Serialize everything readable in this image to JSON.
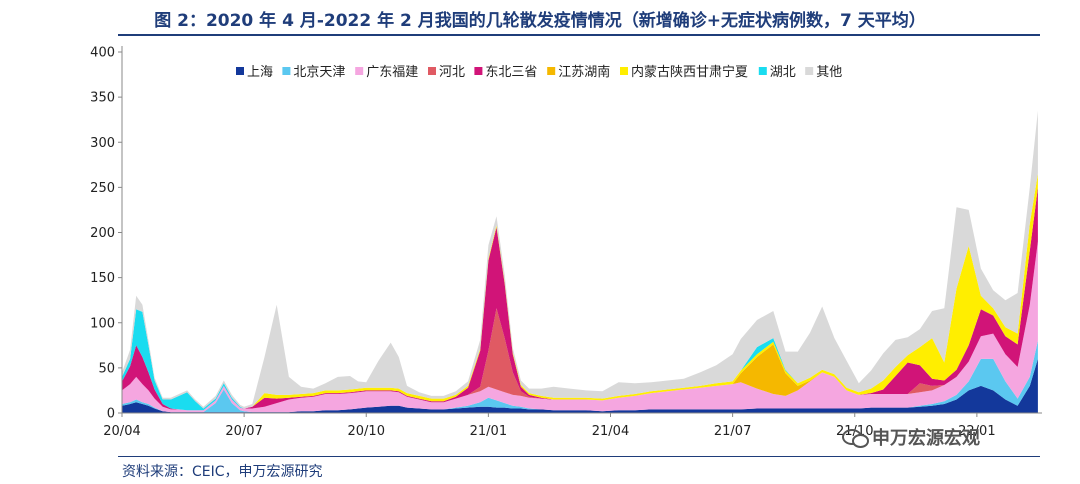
{
  "header": {
    "title": "图 2：2020 年 4 月-2022 年 2 月我国的几轮散发疫情情况（新增确诊+无症状病例数，7 天平均）"
  },
  "footer": {
    "source": "资料来源：CEIC，申万宏源研究",
    "watermark": "申万宏源宏观",
    "watermark_icon": "wechat-icon"
  },
  "chart_data": {
    "type": "area",
    "stacked": true,
    "title": "图 2：2020 年 4 月-2022 年 2 月我国的几轮散发疫情情况（新增确诊+无症状病例数，7 天平均）",
    "xlabel": "",
    "ylabel": "",
    "ylim": [
      0,
      400
    ],
    "yticks": [
      0,
      50,
      100,
      150,
      200,
      250,
      300,
      350,
      400
    ],
    "xlim": [
      0,
      22.6
    ],
    "xticks": [
      {
        "pos": 0,
        "label": "20/04"
      },
      {
        "pos": 3,
        "label": "20/07"
      },
      {
        "pos": 6,
        "label": "20/10"
      },
      {
        "pos": 9,
        "label": "21/01"
      },
      {
        "pos": 12,
        "label": "21/04"
      },
      {
        "pos": 15,
        "label": "21/07"
      },
      {
        "pos": 18,
        "label": "21/10"
      },
      {
        "pos": 21,
        "label": "22/01"
      }
    ],
    "legend_position": "top",
    "grid": false,
    "x": [
      0,
      0.2,
      0.35,
      0.5,
      0.65,
      0.8,
      1.0,
      1.2,
      1.4,
      1.6,
      1.8,
      2.0,
      2.3,
      2.5,
      2.7,
      2.9,
      3.0,
      3.2,
      3.5,
      3.8,
      4.1,
      4.4,
      4.7,
      5.0,
      5.3,
      5.6,
      5.8,
      6.0,
      6.3,
      6.6,
      6.8,
      7.0,
      7.3,
      7.6,
      7.9,
      8.2,
      8.5,
      8.8,
      9.0,
      9.2,
      9.4,
      9.6,
      9.8,
      10.0,
      10.3,
      10.6,
      11.0,
      11.4,
      11.8,
      12.2,
      12.6,
      13.0,
      13.4,
      13.8,
      14.2,
      14.6,
      15.0,
      15.2,
      15.6,
      16.0,
      16.3,
      16.6,
      16.9,
      17.2,
      17.5,
      17.8,
      18.1,
      18.4,
      18.7,
      19.0,
      19.3,
      19.6,
      19.9,
      20.2,
      20.5,
      20.8,
      21.1,
      21.4,
      21.7,
      22.0,
      22.3,
      22.5
    ],
    "series": [
      {
        "name": "上海",
        "color": "#13389b",
        "values": [
          8,
          10,
          12,
          10,
          8,
          5,
          2,
          1,
          1,
          1,
          1,
          1,
          1,
          1,
          1,
          1,
          1,
          1,
          1,
          1,
          1,
          2,
          2,
          3,
          3,
          4,
          5,
          6,
          7,
          8,
          8,
          6,
          5,
          4,
          4,
          5,
          6,
          7,
          7,
          6,
          6,
          5,
          5,
          4,
          4,
          3,
          3,
          3,
          2,
          3,
          3,
          4,
          4,
          4,
          4,
          4,
          4,
          4,
          5,
          5,
          5,
          5,
          5,
          5,
          5,
          5,
          5,
          6,
          6,
          6,
          6,
          7,
          8,
          10,
          15,
          25,
          30,
          25,
          15,
          8,
          30,
          60
        ]
      },
      {
        "name": "北京天津",
        "color": "#5bc8f0",
        "values": [
          2,
          2,
          3,
          2,
          2,
          1,
          0,
          0,
          0,
          0,
          0,
          0,
          10,
          25,
          10,
          2,
          1,
          0,
          0,
          0,
          0,
          0,
          0,
          0,
          0,
          0,
          0,
          0,
          0,
          0,
          0,
          0,
          0,
          0,
          0,
          1,
          2,
          5,
          10,
          8,
          5,
          3,
          2,
          1,
          0,
          0,
          0,
          0,
          0,
          0,
          0,
          0,
          0,
          0,
          0,
          0,
          0,
          0,
          0,
          0,
          0,
          0,
          0,
          0,
          0,
          0,
          0,
          0,
          0,
          0,
          0,
          1,
          2,
          3,
          5,
          10,
          30,
          35,
          20,
          8,
          10,
          20
        ]
      },
      {
        "name": "广东福建",
        "color": "#f5a6e0",
        "values": [
          15,
          20,
          25,
          20,
          15,
          10,
          5,
          3,
          3,
          2,
          2,
          2,
          3,
          4,
          4,
          3,
          3,
          4,
          6,
          10,
          14,
          15,
          16,
          18,
          18,
          18,
          18,
          18,
          17,
          16,
          15,
          12,
          10,
          8,
          8,
          10,
          12,
          12,
          12,
          12,
          12,
          12,
          12,
          12,
          12,
          12,
          12,
          12,
          12,
          14,
          16,
          18,
          20,
          22,
          24,
          26,
          28,
          30,
          22,
          16,
          14,
          20,
          30,
          40,
          35,
          20,
          15,
          15,
          15,
          15,
          15,
          15,
          15,
          18,
          20,
          22,
          25,
          28,
          30,
          35,
          80,
          110
        ]
      },
      {
        "name": "河北",
        "color": "#e05a63",
        "values": [
          0,
          0,
          0,
          0,
          0,
          0,
          0,
          0,
          0,
          0,
          0,
          0,
          0,
          0,
          0,
          0,
          0,
          0,
          0,
          0,
          0,
          0,
          0,
          0,
          0,
          0,
          0,
          0,
          0,
          0,
          0,
          0,
          0,
          0,
          0,
          0,
          0,
          5,
          40,
          90,
          60,
          25,
          5,
          1,
          0,
          0,
          0,
          0,
          0,
          0,
          0,
          0,
          0,
          0,
          0,
          0,
          0,
          0,
          0,
          0,
          0,
          0,
          0,
          0,
          0,
          0,
          0,
          0,
          0,
          0,
          0,
          10,
          5,
          0,
          0,
          0,
          0,
          0,
          0,
          0,
          0,
          0
        ]
      },
      {
        "name": "东北三省",
        "color": "#d11478",
        "values": [
          10,
          20,
          35,
          30,
          20,
          10,
          3,
          1,
          0,
          0,
          0,
          0,
          0,
          0,
          0,
          0,
          0,
          2,
          10,
          5,
          2,
          1,
          1,
          1,
          1,
          1,
          1,
          1,
          1,
          1,
          1,
          1,
          1,
          1,
          1,
          2,
          8,
          40,
          100,
          90,
          60,
          20,
          5,
          2,
          1,
          0,
          0,
          0,
          0,
          0,
          0,
          0,
          0,
          0,
          0,
          0,
          0,
          0,
          0,
          0,
          0,
          0,
          0,
          0,
          0,
          0,
          0,
          1,
          5,
          20,
          35,
          20,
          8,
          5,
          8,
          18,
          30,
          20,
          20,
          25,
          60,
          60
        ]
      },
      {
        "name": "江苏湖南",
        "color": "#f5b800",
        "values": [
          0,
          0,
          0,
          0,
          0,
          0,
          0,
          0,
          0,
          0,
          0,
          0,
          0,
          0,
          0,
          0,
          0,
          0,
          0,
          0,
          0,
          0,
          0,
          0,
          0,
          0,
          0,
          0,
          0,
          0,
          0,
          0,
          0,
          0,
          0,
          0,
          0,
          0,
          0,
          0,
          0,
          0,
          0,
          0,
          0,
          0,
          0,
          0,
          0,
          0,
          0,
          0,
          0,
          0,
          0,
          0,
          0,
          10,
          35,
          55,
          25,
          5,
          1,
          0,
          0,
          0,
          0,
          0,
          0,
          0,
          0,
          0,
          0,
          0,
          0,
          0,
          0,
          0,
          0,
          0,
          0,
          0
        ]
      },
      {
        "name": "内蒙古陕西甘肃宁夏",
        "color": "#ffee00",
        "values": [
          0,
          0,
          0,
          0,
          0,
          0,
          0,
          0,
          0,
          0,
          0,
          0,
          0,
          0,
          0,
          0,
          0,
          0,
          5,
          4,
          3,
          3,
          3,
          3,
          3,
          3,
          3,
          3,
          3,
          3,
          3,
          3,
          3,
          3,
          3,
          2,
          2,
          2,
          2,
          2,
          2,
          2,
          2,
          2,
          2,
          2,
          2,
          2,
          2,
          2,
          2,
          2,
          2,
          2,
          2,
          3,
          3,
          3,
          3,
          3,
          3,
          3,
          3,
          3,
          3,
          3,
          3,
          5,
          10,
          10,
          8,
          20,
          45,
          20,
          90,
          110,
          15,
          8,
          10,
          12,
          30,
          15
        ]
      },
      {
        "name": "湖北",
        "color": "#1adcf0",
        "values": [
          5,
          8,
          40,
          50,
          30,
          10,
          5,
          10,
          15,
          20,
          10,
          2,
          2,
          3,
          2,
          1,
          0,
          0,
          0,
          0,
          0,
          0,
          0,
          0,
          0,
          0,
          0,
          0,
          0,
          0,
          0,
          0,
          0,
          0,
          0,
          0,
          0,
          0,
          0,
          0,
          0,
          0,
          0,
          0,
          0,
          0,
          0,
          0,
          0,
          0,
          0,
          0,
          0,
          0,
          0,
          0,
          0,
          0,
          8,
          4,
          1,
          0,
          0,
          0,
          0,
          0,
          0,
          0,
          0,
          0,
          0,
          0,
          0,
          0,
          0,
          0,
          0,
          0,
          0,
          0,
          0,
          0
        ]
      },
      {
        "name": "其他",
        "color": "#d9d9d9",
        "values": [
          5,
          10,
          15,
          8,
          5,
          3,
          2,
          2,
          2,
          2,
          2,
          2,
          3,
          3,
          3,
          2,
          2,
          3,
          40,
          100,
          20,
          8,
          5,
          8,
          15,
          15,
          8,
          6,
          30,
          50,
          35,
          8,
          4,
          3,
          3,
          4,
          5,
          10,
          15,
          10,
          8,
          5,
          5,
          5,
          8,
          12,
          10,
          8,
          8,
          15,
          12,
          10,
          10,
          10,
          15,
          20,
          30,
          35,
          30,
          30,
          20,
          35,
          50,
          70,
          40,
          30,
          10,
          20,
          30,
          30,
          20,
          20,
          30,
          60,
          90,
          40,
          30,
          20,
          30,
          45,
          40,
          70
        ]
      }
    ]
  }
}
